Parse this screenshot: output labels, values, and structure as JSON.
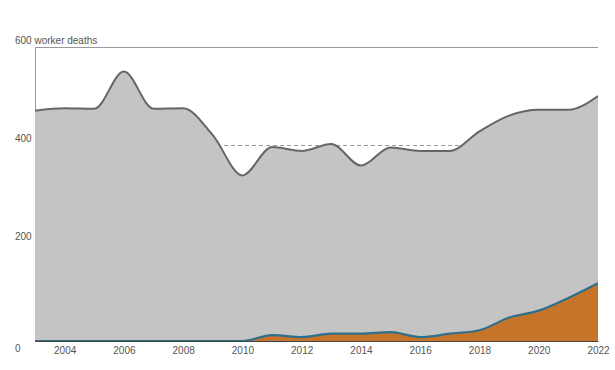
{
  "chart_data": {
    "type": "area",
    "x": [
      2003,
      2004,
      2005,
      2006,
      2007,
      2008,
      2009,
      2010,
      2011,
      2012,
      2013,
      2014,
      2015,
      2016,
      2017,
      2018,
      2019,
      2020,
      2021,
      2022
    ],
    "series": [
      {
        "color": "#c4c4c4",
        "values": [
          470,
          475,
          474,
          550,
          474,
          475,
          420,
          338,
          396,
          388,
          402,
          358,
          395,
          388,
          388,
          428,
          460,
          472,
          472,
          500
        ]
      },
      {
        "color": "#c8732a",
        "values": [
          0,
          0,
          0,
          0,
          0,
          0,
          0,
          0,
          12,
          8,
          15,
          15,
          18,
          8,
          15,
          22,
          48,
          62,
          88,
          118
        ]
      }
    ],
    "xlim": [
      2003,
      2022
    ],
    "xticks": [
      2004,
      2006,
      2008,
      2010,
      2012,
      2014,
      2016,
      2018,
      2020,
      2022
    ],
    "ylim": [
      0,
      600
    ],
    "yticks": [
      0,
      200,
      400,
      {
        "value": 600,
        "label": "600 worker deaths"
      }
    ],
    "grid": true,
    "stacked": false
  }
}
